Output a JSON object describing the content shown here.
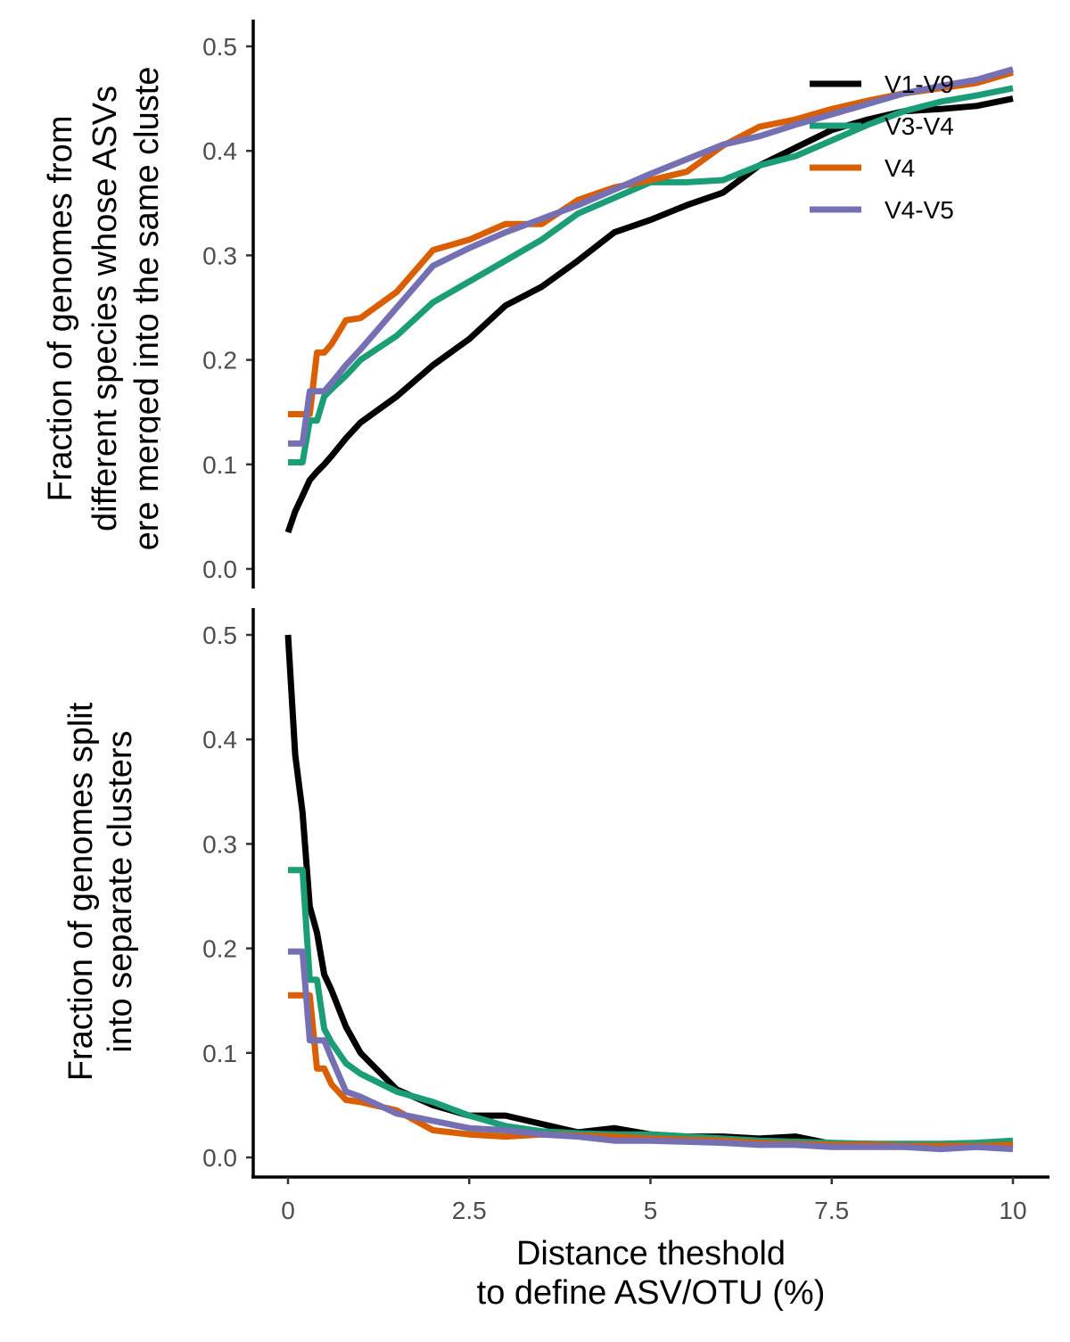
{
  "colors": {
    "V1-V9": "#000000",
    "V3-V4": "#1b9e77",
    "V4": "#d95f02",
    "V4-V5": "#7570b3"
  },
  "legend": {
    "placement": "top-right",
    "entries": [
      {
        "label": "V1-V9",
        "color": "#000000"
      },
      {
        "label": "V3-V4",
        "color": "#1b9e77"
      },
      {
        "label": "V4",
        "color": "#d95f02"
      },
      {
        "label": "V4-V5",
        "color": "#7570b3"
      }
    ]
  },
  "chart_data": [
    {
      "type": "line",
      "ylabel_lines": [
        "Fraction of genomes from",
        "different species whose ASVs",
        "ere merged into the same cluste"
      ],
      "xlim": [
        0,
        10
      ],
      "ylim": [
        0,
        0.5
      ],
      "y_ticks": [
        0.0,
        0.1,
        0.2,
        0.3,
        0.4,
        0.5
      ],
      "y_tick_labels": [
        "0.0",
        "0.1",
        "0.2",
        "0.3",
        "0.4",
        "0.5"
      ],
      "grid": false,
      "series": [
        {
          "name": "V1-V9",
          "color": "#000000",
          "x": [
            0,
            0.1,
            0.2,
            0.3,
            0.4,
            0.5,
            0.6,
            0.8,
            1.0,
            1.5,
            2.0,
            2.5,
            3.0,
            3.5,
            4.0,
            4.5,
            5.0,
            5.5,
            6.0,
            6.5,
            7.0,
            7.5,
            8.0,
            8.5,
            9.0,
            9.5,
            10.0
          ],
          "y": [
            0.035,
            0.055,
            0.07,
            0.085,
            0.093,
            0.1,
            0.108,
            0.125,
            0.14,
            0.165,
            0.195,
            0.22,
            0.252,
            0.27,
            0.295,
            0.322,
            0.334,
            0.348,
            0.36,
            0.386,
            0.403,
            0.42,
            0.43,
            0.438,
            0.44,
            0.443,
            0.45
          ]
        },
        {
          "name": "V3-V4",
          "color": "#1b9e77",
          "x": [
            0,
            0.1,
            0.2,
            0.3,
            0.4,
            0.5,
            0.6,
            0.8,
            1.0,
            1.5,
            2.0,
            2.5,
            3.0,
            3.5,
            4.0,
            4.5,
            5.0,
            5.5,
            6.0,
            6.5,
            7.0,
            7.5,
            8.0,
            8.5,
            9.0,
            9.5,
            10.0
          ],
          "y": [
            0.102,
            0.102,
            0.102,
            0.142,
            0.142,
            0.165,
            0.172,
            0.185,
            0.2,
            0.223,
            0.255,
            0.275,
            0.295,
            0.315,
            0.34,
            0.355,
            0.37,
            0.37,
            0.372,
            0.386,
            0.395,
            0.41,
            0.425,
            0.438,
            0.447,
            0.453,
            0.46
          ]
        },
        {
          "name": "V4",
          "color": "#d95f02",
          "x": [
            0,
            0.1,
            0.2,
            0.3,
            0.4,
            0.5,
            0.6,
            0.8,
            1.0,
            1.5,
            2.0,
            2.5,
            3.0,
            3.5,
            4.0,
            4.5,
            5.0,
            5.5,
            6.0,
            6.5,
            7.0,
            7.5,
            8.0,
            8.5,
            9.0,
            9.5,
            10.0
          ],
          "y": [
            0.148,
            0.148,
            0.148,
            0.148,
            0.207,
            0.207,
            0.215,
            0.238,
            0.24,
            0.265,
            0.305,
            0.315,
            0.33,
            0.33,
            0.353,
            0.365,
            0.372,
            0.38,
            0.405,
            0.423,
            0.43,
            0.44,
            0.448,
            0.455,
            0.46,
            0.465,
            0.475
          ]
        },
        {
          "name": "V4-V5",
          "color": "#7570b3",
          "x": [
            0,
            0.1,
            0.2,
            0.3,
            0.4,
            0.5,
            0.6,
            0.8,
            1.0,
            1.5,
            2.0,
            2.5,
            3.0,
            3.5,
            4.0,
            4.5,
            5.0,
            5.5,
            6.0,
            6.5,
            7.0,
            7.5,
            8.0,
            8.5,
            9.0,
            9.5,
            10.0
          ],
          "y": [
            0.12,
            0.12,
            0.12,
            0.17,
            0.17,
            0.17,
            0.178,
            0.195,
            0.21,
            0.25,
            0.29,
            0.307,
            0.322,
            0.335,
            0.348,
            0.363,
            0.378,
            0.392,
            0.406,
            0.414,
            0.425,
            0.435,
            0.445,
            0.455,
            0.462,
            0.468,
            0.478
          ]
        }
      ]
    },
    {
      "type": "line",
      "ylabel_lines": [
        "Fraction of genomes split",
        "into separate clusters"
      ],
      "xlabel_lines": [
        "Distance theshold",
        "to define ASV/OTU (%)"
      ],
      "xlim": [
        0,
        10
      ],
      "ylim": [
        0,
        0.5
      ],
      "x_ticks": [
        0,
        2.5,
        5,
        7.5,
        10
      ],
      "x_tick_labels": [
        "0",
        "2.5",
        "5",
        "7.5",
        "10"
      ],
      "y_ticks": [
        0.0,
        0.1,
        0.2,
        0.3,
        0.4,
        0.5
      ],
      "y_tick_labels": [
        "0.0",
        "0.1",
        "0.2",
        "0.3",
        "0.4",
        "0.5"
      ],
      "grid": false,
      "series": [
        {
          "name": "V1-V9",
          "color": "#000000",
          "x": [
            0,
            0.1,
            0.2,
            0.3,
            0.4,
            0.5,
            0.6,
            0.8,
            1.0,
            1.5,
            2.0,
            2.5,
            3.0,
            3.5,
            4.0,
            4.5,
            5.0,
            5.5,
            6.0,
            6.5,
            7.0,
            7.5,
            8.0,
            8.5,
            9.0,
            9.5,
            10.0
          ],
          "y": [
            0.5,
            0.385,
            0.33,
            0.24,
            0.215,
            0.175,
            0.16,
            0.125,
            0.1,
            0.065,
            0.05,
            0.04,
            0.04,
            0.032,
            0.024,
            0.028,
            0.022,
            0.02,
            0.02,
            0.018,
            0.02,
            0.013,
            0.013,
            0.012,
            0.012,
            0.012,
            0.013
          ]
        },
        {
          "name": "V3-V4",
          "color": "#1b9e77",
          "x": [
            0,
            0.1,
            0.2,
            0.3,
            0.4,
            0.5,
            0.6,
            0.8,
            1.0,
            1.5,
            2.0,
            2.5,
            3.0,
            3.5,
            4.0,
            4.5,
            5.0,
            5.5,
            6.0,
            6.5,
            7.0,
            7.5,
            8.0,
            8.5,
            9.0,
            9.5,
            10.0
          ],
          "y": [
            0.275,
            0.275,
            0.275,
            0.17,
            0.17,
            0.123,
            0.11,
            0.09,
            0.08,
            0.063,
            0.053,
            0.04,
            0.03,
            0.025,
            0.023,
            0.022,
            0.022,
            0.02,
            0.018,
            0.016,
            0.015,
            0.014,
            0.013,
            0.013,
            0.013,
            0.014,
            0.016
          ]
        },
        {
          "name": "V4",
          "color": "#d95f02",
          "x": [
            0,
            0.1,
            0.2,
            0.3,
            0.4,
            0.5,
            0.6,
            0.8,
            1.0,
            1.5,
            2.0,
            2.5,
            3.0,
            3.5,
            4.0,
            4.5,
            5.0,
            5.5,
            6.0,
            6.5,
            7.0,
            7.5,
            8.0,
            8.5,
            9.0,
            9.5,
            10.0
          ],
          "y": [
            0.155,
            0.155,
            0.155,
            0.155,
            0.085,
            0.085,
            0.07,
            0.055,
            0.053,
            0.045,
            0.026,
            0.022,
            0.02,
            0.022,
            0.021,
            0.02,
            0.018,
            0.017,
            0.016,
            0.014,
            0.013,
            0.012,
            0.012,
            0.011,
            0.011,
            0.011,
            0.012
          ]
        },
        {
          "name": "V4-V5",
          "color": "#7570b3",
          "x": [
            0,
            0.1,
            0.2,
            0.3,
            0.4,
            0.5,
            0.6,
            0.8,
            1.0,
            1.5,
            2.0,
            2.5,
            3.0,
            3.5,
            4.0,
            4.5,
            5.0,
            5.5,
            6.0,
            6.5,
            7.0,
            7.5,
            8.0,
            8.5,
            9.0,
            9.5,
            10.0
          ],
          "y": [
            0.197,
            0.197,
            0.197,
            0.112,
            0.112,
            0.112,
            0.095,
            0.063,
            0.058,
            0.042,
            0.035,
            0.028,
            0.026,
            0.022,
            0.02,
            0.016,
            0.016,
            0.015,
            0.014,
            0.012,
            0.012,
            0.01,
            0.01,
            0.01,
            0.008,
            0.01,
            0.008
          ]
        }
      ]
    }
  ]
}
